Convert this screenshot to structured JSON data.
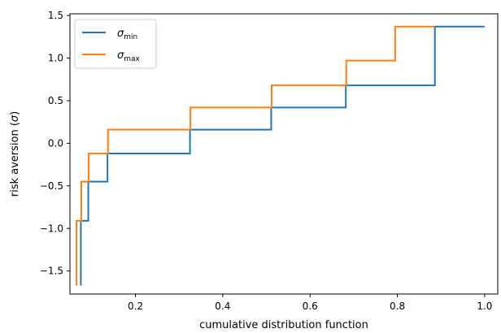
{
  "chart_data": {
    "type": "line",
    "step": true,
    "xlabel": "cumulative distribution function",
    "ylabel_main": "risk aversion (",
    "ylabel_symbol": "σ",
    "ylabel_end": ")",
    "xlim": [
      0.05,
      1.03
    ],
    "ylim": [
      -1.77,
      1.52
    ],
    "xticks": [
      0.2,
      0.4,
      0.6,
      0.8,
      1.0
    ],
    "xtick_labels": [
      "0.2",
      "0.4",
      "0.6",
      "0.8",
      "1.0"
    ],
    "yticks": [
      1.5,
      1.0,
      0.5,
      0.0,
      -0.5,
      -1.0,
      -1.5
    ],
    "ytick_labels": [
      "1.5",
      "1.0",
      "0.5",
      "0.0",
      "−0.5",
      "−1.0",
      "−1.5"
    ],
    "grid": false,
    "legend_position": "upper-left",
    "series": [
      {
        "name": "σ",
        "name_sub": "min",
        "color": "#1f77b4",
        "x": [
          0.075,
          0.075,
          0.092,
          0.092,
          0.136,
          0.136,
          0.325,
          0.325,
          0.511,
          0.511,
          0.682,
          0.682,
          0.886,
          0.886,
          1.0
        ],
        "y": [
          -1.67,
          -0.91,
          -0.91,
          -0.45,
          -0.45,
          -0.12,
          -0.12,
          0.16,
          0.16,
          0.42,
          0.42,
          0.68,
          0.68,
          1.37,
          1.37
        ]
      },
      {
        "name": "σ",
        "name_sub": "max",
        "color": "#ff7f0e",
        "x": [
          0.065,
          0.065,
          0.076,
          0.076,
          0.093,
          0.093,
          0.137,
          0.137,
          0.326,
          0.326,
          0.512,
          0.512,
          0.683,
          0.683,
          0.795,
          0.795,
          0.886
        ],
        "y": [
          -1.67,
          -0.91,
          -0.91,
          -0.45,
          -0.45,
          -0.12,
          -0.12,
          0.16,
          0.16,
          0.42,
          0.42,
          0.68,
          0.68,
          0.97,
          0.97,
          1.37,
          1.37
        ]
      }
    ]
  }
}
